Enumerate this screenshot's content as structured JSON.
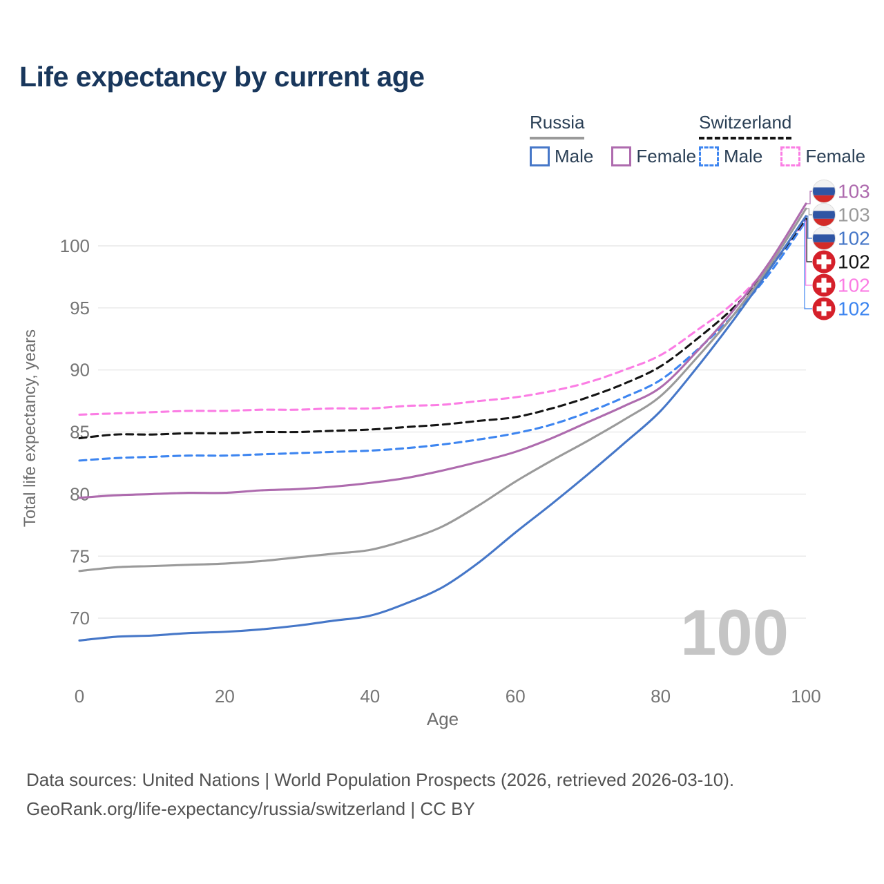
{
  "title": "Life expectancy by current age",
  "watermark": "100",
  "legend": {
    "groups": [
      {
        "country": "Russia",
        "line_style": "solid",
        "underline_color": "#9a9a9a",
        "items": [
          {
            "label": "Male",
            "color": "#4677c8"
          },
          {
            "label": "Female",
            "color": "#ae6bae"
          }
        ]
      },
      {
        "country": "Switzerland",
        "line_style": "dashed",
        "underline_color": "#141414",
        "items": [
          {
            "label": "Male",
            "color": "#3d85f0"
          },
          {
            "label": "Female",
            "color": "#fb7de4"
          }
        ]
      }
    ]
  },
  "footer": {
    "line1": "Data sources: United Nations | World Population Prospects (2026, retrieved 2026-03-10).",
    "line2": "GeoRank.org/life-expectancy/russia/switzerland | CC BY"
  },
  "chart_data": {
    "type": "line",
    "title": "Life expectancy by current age",
    "xlabel": "Age",
    "ylabel": "Total life expectancy, years",
    "xlim": [
      0,
      100
    ],
    "ylim": [
      67,
      104
    ],
    "xticks": [
      0,
      20,
      40,
      60,
      80,
      100
    ],
    "yticks": [
      70,
      75,
      80,
      85,
      90,
      95,
      100
    ],
    "grid": "horizontal",
    "legend_position": "top-right",
    "x": [
      0,
      5,
      10,
      15,
      20,
      25,
      30,
      35,
      40,
      45,
      50,
      55,
      60,
      65,
      70,
      75,
      80,
      85,
      90,
      95,
      100
    ],
    "series": [
      {
        "id": "russia-female",
        "name": "Russia Female",
        "color": "#ae6bae",
        "dashed": false,
        "flag": "russia",
        "end_label": "103",
        "values": [
          79.7,
          79.9,
          80.0,
          80.1,
          80.1,
          80.3,
          80.4,
          80.6,
          80.9,
          81.3,
          81.9,
          82.6,
          83.4,
          84.5,
          85.8,
          87.1,
          88.6,
          91.5,
          94.8,
          98.7,
          103.4
        ]
      },
      {
        "id": "russia-total",
        "name": "Russia Both sexes",
        "color": "#9a9a9a",
        "dashed": false,
        "flag": "russia",
        "end_label": "103",
        "values": [
          73.8,
          74.1,
          74.2,
          74.3,
          74.4,
          74.6,
          74.9,
          75.2,
          75.5,
          76.3,
          77.4,
          79.1,
          81.0,
          82.7,
          84.3,
          86.0,
          87.9,
          91.0,
          94.4,
          98.4,
          103.0
        ]
      },
      {
        "id": "russia-male",
        "name": "Russia Male",
        "color": "#4677c8",
        "dashed": false,
        "flag": "russia",
        "end_label": "102",
        "values": [
          68.2,
          68.5,
          68.6,
          68.8,
          68.9,
          69.1,
          69.4,
          69.8,
          70.2,
          71.2,
          72.5,
          74.5,
          76.9,
          79.2,
          81.6,
          84.1,
          86.7,
          90.2,
          94.0,
          98.1,
          102.4
        ]
      },
      {
        "id": "switzerland-total",
        "name": "Switzerland Both sexes",
        "color": "#141414",
        "dashed": true,
        "flag": "switzerland",
        "end_label": "102",
        "values": [
          84.5,
          84.8,
          84.8,
          84.9,
          84.9,
          85.0,
          85.0,
          85.1,
          85.2,
          85.4,
          85.6,
          85.9,
          86.2,
          86.9,
          87.8,
          88.9,
          90.3,
          92.5,
          95.0,
          98.2,
          102.2
        ]
      },
      {
        "id": "switzerland-female",
        "name": "Switzerland Female",
        "color": "#fb7de4",
        "dashed": true,
        "flag": "switzerland",
        "end_label": "102",
        "values": [
          86.4,
          86.5,
          86.6,
          86.7,
          86.7,
          86.8,
          86.8,
          86.9,
          86.9,
          87.1,
          87.2,
          87.5,
          87.8,
          88.3,
          89.0,
          90.0,
          91.2,
          93.2,
          95.4,
          98.4,
          102.1
        ]
      },
      {
        "id": "switzerland-male",
        "name": "Switzerland Male",
        "color": "#3d85f0",
        "dashed": true,
        "flag": "switzerland",
        "end_label": "102",
        "values": [
          82.7,
          82.9,
          83.0,
          83.1,
          83.1,
          83.2,
          83.3,
          83.4,
          83.5,
          83.7,
          84.0,
          84.4,
          84.9,
          85.6,
          86.6,
          87.8,
          89.2,
          91.6,
          94.4,
          97.8,
          102.0
        ]
      }
    ],
    "colors": {
      "title": "#19375c",
      "tick_text": "#757575",
      "grid": "#e8e8e8",
      "watermark": "#c5c5c5"
    }
  }
}
